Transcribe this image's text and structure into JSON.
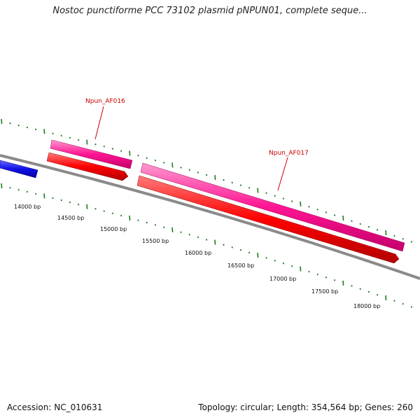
{
  "title": "Nostoc punctiforme PCC 73102 plasmid pNPUN01, complete seque...",
  "footer": {
    "accession": "Accession: NC_010631",
    "summary": "Topology: circular; Length: 354,564 bp; Genes: 260"
  },
  "colors": {
    "backbone": "#888888",
    "tick": "#1f7a1f",
    "gene_label": "#cc0000",
    "pink": "#ff1493",
    "red": "#ff0000",
    "blue": "#1010e8"
  },
  "ticks": {
    "labels": [
      "14000 bp",
      "14500 bp",
      "15000 bp",
      "15500 bp",
      "16000 bp",
      "16500 bp",
      "17000 bp",
      "17500 bp",
      "18000 bp"
    ]
  },
  "genes": [
    {
      "label": "Npun_AF016"
    },
    {
      "label": "Npun_AF017"
    }
  ]
}
